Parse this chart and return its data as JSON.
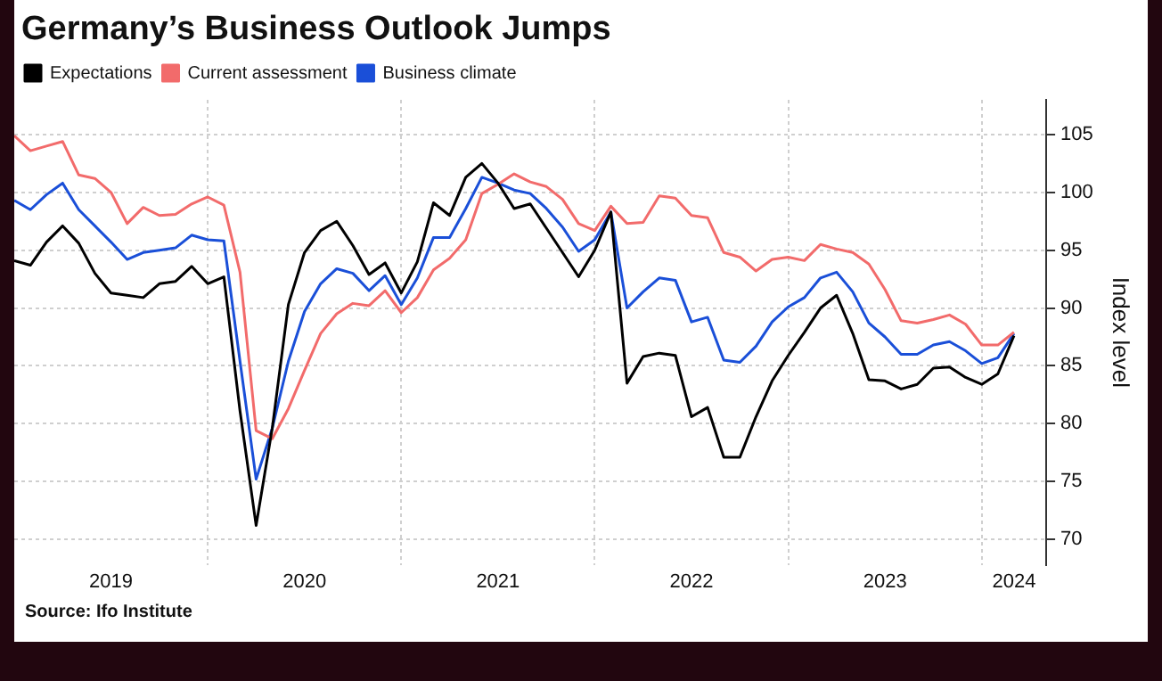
{
  "chart_data": {
    "type": "line",
    "title": "Germany’s Business Outlook Jumps",
    "ylabel": "Index level",
    "annotations": [
      "Source: Ifo Institute"
    ],
    "x": [
      "2019-01",
      "2019-02",
      "2019-03",
      "2019-04",
      "2019-05",
      "2019-06",
      "2019-07",
      "2019-08",
      "2019-09",
      "2019-10",
      "2019-11",
      "2019-12",
      "2020-01",
      "2020-02",
      "2020-03",
      "2020-04",
      "2020-05",
      "2020-06",
      "2020-07",
      "2020-08",
      "2020-09",
      "2020-10",
      "2020-11",
      "2020-12",
      "2021-01",
      "2021-02",
      "2021-03",
      "2021-04",
      "2021-05",
      "2021-06",
      "2021-07",
      "2021-08",
      "2021-09",
      "2021-10",
      "2021-11",
      "2021-12",
      "2022-01",
      "2022-02",
      "2022-03",
      "2022-04",
      "2022-05",
      "2022-06",
      "2022-07",
      "2022-08",
      "2022-09",
      "2022-10",
      "2022-11",
      "2022-12",
      "2023-01",
      "2023-02",
      "2023-03",
      "2023-04",
      "2023-05",
      "2023-06",
      "2023-07",
      "2023-08",
      "2023-09",
      "2023-10",
      "2023-11",
      "2023-12",
      "2024-01",
      "2024-02",
      "2024-03"
    ],
    "series": [
      {
        "name": "Expectations",
        "color": "#000000",
        "values": [
          94.1,
          93.7,
          95.7,
          97.1,
          95.6,
          93.0,
          91.3,
          91.1,
          90.9,
          92.1,
          92.3,
          93.6,
          92.1,
          92.7,
          81.1,
          71.2,
          79.6,
          90.3,
          94.8,
          96.7,
          97.5,
          95.4,
          92.9,
          93.9,
          91.3,
          94.0,
          99.1,
          98.0,
          101.3,
          102.5,
          100.8,
          98.6,
          99.0,
          96.9,
          94.8,
          92.7,
          95.0,
          98.3,
          83.5,
          85.8,
          86.1,
          85.9,
          80.6,
          81.4,
          77.1,
          77.1,
          80.6,
          83.7,
          85.9,
          87.9,
          90.0,
          91.1,
          87.8,
          83.8,
          83.7,
          83.0,
          83.4,
          84.8,
          84.9,
          84.0,
          83.4,
          84.3,
          87.6
        ]
      },
      {
        "name": "Current assessment",
        "color": "#f26b6b",
        "values": [
          104.9,
          103.6,
          104.0,
          104.4,
          101.5,
          101.2,
          100.0,
          97.3,
          98.7,
          98.0,
          98.1,
          99.0,
          99.6,
          98.9,
          93.1,
          79.4,
          78.7,
          81.3,
          84.6,
          87.8,
          89.5,
          90.4,
          90.2,
          91.5,
          89.6,
          90.9,
          93.3,
          94.3,
          95.9,
          99.9,
          100.7,
          101.6,
          100.9,
          100.5,
          99.4,
          97.3,
          96.7,
          98.8,
          97.3,
          97.4,
          99.7,
          99.5,
          98.0,
          97.8,
          94.8,
          94.4,
          93.2,
          94.2,
          94.4,
          94.1,
          95.5,
          95.1,
          94.8,
          93.8,
          91.6,
          88.9,
          88.7,
          89.0,
          89.4,
          88.6,
          86.8,
          86.8,
          87.9
        ]
      },
      {
        "name": "Business climate",
        "color": "#1a4fd8",
        "values": [
          99.3,
          98.5,
          99.8,
          100.8,
          98.5,
          97.1,
          95.7,
          94.2,
          94.8,
          95.0,
          95.2,
          96.3,
          95.9,
          95.8,
          85.4,
          75.2,
          79.6,
          85.4,
          89.7,
          92.1,
          93.4,
          93.0,
          91.5,
          92.8,
          90.3,
          92.6,
          96.1,
          96.1,
          98.6,
          101.3,
          100.8,
          100.2,
          99.9,
          98.6,
          97.0,
          94.9,
          95.9,
          98.3,
          90.0,
          91.4,
          92.6,
          92.4,
          88.8,
          89.2,
          85.5,
          85.3,
          86.7,
          88.8,
          90.1,
          90.9,
          92.6,
          93.1,
          91.4,
          88.7,
          87.5,
          86.0,
          86.0,
          86.8,
          87.1,
          86.3,
          85.2,
          85.7,
          87.8
        ]
      }
    ],
    "xlim": [
      "2019-01",
      "2024-05"
    ],
    "xticks": [
      {
        "value": "2019-07",
        "label": "2019"
      },
      {
        "value": "2020-01",
        "label": null
      },
      {
        "value": "2020-07",
        "label": "2020"
      },
      {
        "value": "2021-01",
        "label": null
      },
      {
        "value": "2021-07",
        "label": "2021"
      },
      {
        "value": "2022-01",
        "label": null
      },
      {
        "value": "2022-07",
        "label": "2022"
      },
      {
        "value": "2023-01",
        "label": null
      },
      {
        "value": "2023-07",
        "label": "2023"
      },
      {
        "value": "2024-01",
        "label": null
      },
      {
        "value": "2024-03",
        "label": "2024"
      }
    ],
    "ylim": [
      67.8,
      108
    ],
    "yticks": [
      70,
      75,
      80,
      85,
      90,
      95,
      100,
      105
    ],
    "grid": true,
    "legend": "top left",
    "marker": "none",
    "line_style": "solid"
  }
}
